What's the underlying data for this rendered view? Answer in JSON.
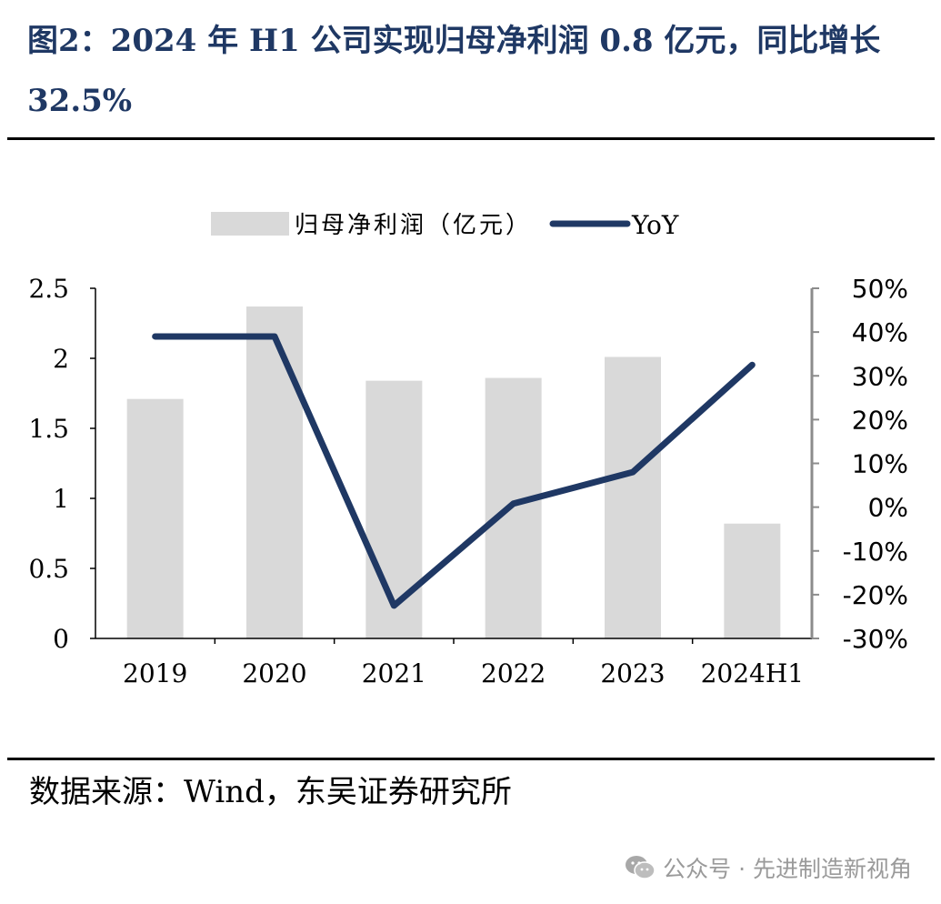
{
  "header": {
    "title": "图2：2024 年 H1 公司实现归母净利润 0.8 亿元，同比增长 32.5%"
  },
  "chart_data": {
    "type": "bar",
    "categories": [
      "2019",
      "2020",
      "2021",
      "2022",
      "2023",
      "2024H1"
    ],
    "series": [
      {
        "name": "归母净利润（亿元）",
        "kind": "bar",
        "axis": "left",
        "values": [
          1.71,
          2.37,
          1.84,
          1.86,
          2.01,
          0.82
        ],
        "color": "#d9d9d9"
      },
      {
        "name": "YoY",
        "kind": "line",
        "axis": "right",
        "values": [
          39.0,
          39.0,
          -22.5,
          0.8,
          8.0,
          32.5
        ],
        "color": "#1f3864"
      }
    ],
    "y_left": {
      "range": [
        0,
        2.5
      ],
      "ticks": [
        "0",
        "0.5",
        "1",
        "1.5",
        "2",
        "2.5"
      ]
    },
    "y_right": {
      "range": [
        -30,
        50
      ],
      "ticks": [
        "-30%",
        "-20%",
        "-10%",
        "0%",
        "10%",
        "20%",
        "30%",
        "40%",
        "50%"
      ]
    },
    "legend": "top-center",
    "grid": false
  },
  "footer": {
    "source": "数据来源：Wind，东吴证券研究所",
    "watermark": "公众号 · 先进制造新视角",
    "watermark_icon": "wechat-icon"
  }
}
